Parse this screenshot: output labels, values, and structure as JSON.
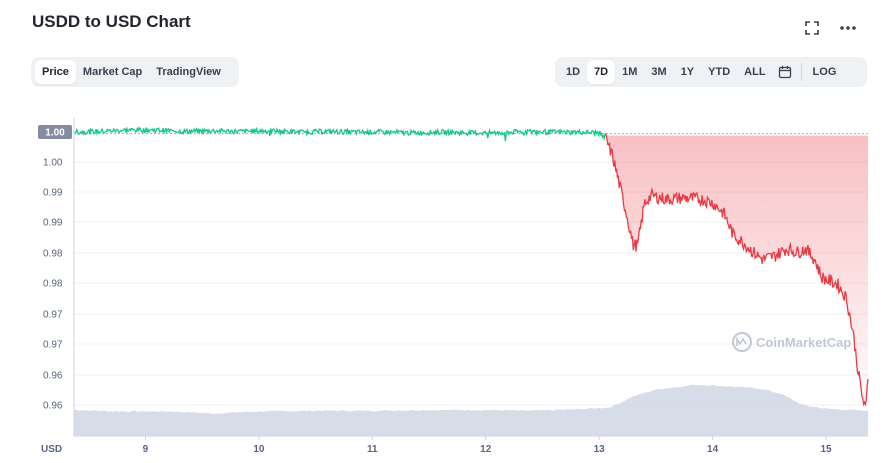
{
  "header": {
    "title": "USDD to USD Chart"
  },
  "icons": {
    "fullscreen": "fullscreen-icon",
    "more": "more-icon",
    "calendar": "calendar-icon"
  },
  "chart_tabs": [
    "Price",
    "Market Cap",
    "TradingView"
  ],
  "range_tabs": [
    "1D",
    "7D",
    "1M",
    "3M",
    "1Y",
    "YTD",
    "ALL"
  ],
  "log_label": "LOG",
  "active_chart_tab": "Price",
  "active_range": "7D",
  "watermark": "CoinMarketCap",
  "colors": {
    "up": "#16c784",
    "down": "#ea3943",
    "volume": "#cfd6e4",
    "current_badge": "#858ca2"
  },
  "chart_data": {
    "type": "line",
    "title": "",
    "currency_label": "USD",
    "current_price_label": "1.00",
    "y_tick_labels": [
      "1.00",
      "0.99",
      "0.99",
      "0.98",
      "0.98",
      "0.97",
      "0.97",
      "0.96",
      "0.96"
    ],
    "x_tick_labels": [
      "9",
      "10",
      "11",
      "12",
      "13",
      "14",
      "15"
    ],
    "x_tick_days": [
      9,
      10,
      11,
      12,
      13,
      14,
      15
    ],
    "ylim": [
      0.9575,
      1.0025
    ],
    "xlim": [
      8.37,
      15.37
    ],
    "reference_price": 1.0,
    "series": [
      {
        "x": [
          8.37,
          8.6,
          8.85,
          9.1,
          9.35,
          9.6,
          9.85,
          10.1,
          10.35,
          10.6,
          10.85,
          11.1,
          11.35,
          11.6,
          11.85,
          12.1,
          12.35,
          12.6,
          12.85,
          13.0,
          13.06,
          13.12,
          13.18,
          13.24,
          13.3,
          13.34,
          13.4,
          13.46,
          13.6,
          13.75,
          13.9,
          14.0,
          14.1,
          14.18,
          14.26,
          14.36,
          14.44,
          14.55,
          14.65,
          14.75,
          14.82,
          14.9,
          14.96,
          15.02,
          15.1,
          15.18,
          15.24,
          15.28,
          15.32,
          15.35,
          15.37
        ],
        "y": [
          1.0005,
          1.0006,
          1.0008,
          1.0008,
          1.0006,
          1.0007,
          1.0006,
          1.0007,
          1.0005,
          1.0006,
          1.0005,
          1.0005,
          1.0004,
          1.0005,
          1.0004,
          1.0004,
          1.0006,
          1.0005,
          1.0005,
          1.0004,
          0.9995,
          0.997,
          0.993,
          0.989,
          0.9845,
          0.9845,
          0.9905,
          0.9915,
          0.991,
          0.9912,
          0.991,
          0.9905,
          0.989,
          0.986,
          0.985,
          0.9835,
          0.9825,
          0.983,
          0.984,
          0.9835,
          0.984,
          0.9825,
          0.98,
          0.9795,
          0.979,
          0.977,
          0.972,
          0.967,
          0.963,
          0.961,
          0.966
        ]
      }
    ],
    "volume": {
      "x": [
        8.37,
        8.8,
        9.2,
        9.6,
        10.0,
        10.5,
        11.0,
        11.5,
        12.0,
        12.4,
        12.8,
        13.1,
        13.3,
        13.5,
        13.7,
        13.85,
        14.0,
        14.2,
        14.4,
        14.6,
        14.8,
        15.0,
        15.2,
        15.37
      ],
      "v": [
        0.38,
        0.36,
        0.36,
        0.33,
        0.36,
        0.37,
        0.37,
        0.38,
        0.38,
        0.37,
        0.39,
        0.42,
        0.58,
        0.68,
        0.72,
        0.75,
        0.74,
        0.72,
        0.7,
        0.62,
        0.45,
        0.4,
        0.38,
        0.37
      ]
    }
  }
}
